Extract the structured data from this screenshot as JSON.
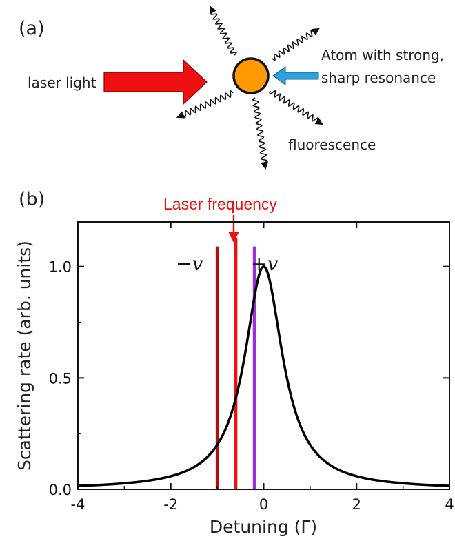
{
  "panel_a": {
    "label": "(a)",
    "laser_label": "laser light",
    "atom_label_line1": "Atom with strong,",
    "atom_label_line2": "sharp resonance",
    "fluorescence_label": "fluorescence",
    "colors": {
      "laser_arrow": "#ee1111",
      "atom_fill": "#ff9a00",
      "small_arrow": "#2aa0dd"
    }
  },
  "panel_b": {
    "label": "(b)",
    "laser_frequency_label": "Laser frequency",
    "minus_v_label": "−v",
    "plus_v_label": "+v"
  },
  "chart_data": {
    "type": "line",
    "xlabel": "Detuning (Γ)",
    "ylabel": "Scattering rate (arb. units)",
    "xlim": [
      -4,
      4
    ],
    "ylim": [
      0,
      1.2
    ],
    "xticks": [
      -4,
      -2,
      0,
      2,
      4
    ],
    "xtick_labels": [
      "-4",
      "-2",
      "0",
      "2",
      "4"
    ],
    "yticks": [
      0,
      0.5,
      1.0
    ],
    "ytick_labels": [
      "0.0",
      "0.5",
      "1.0"
    ],
    "curve": {
      "type": "lorentzian",
      "center": 0,
      "fwhm": 1,
      "peak": 1.0,
      "color": "#000000"
    },
    "vertical_lines": [
      {
        "x": -1.0,
        "top": 1.09,
        "color": "#b01010",
        "label": "−v"
      },
      {
        "x": -0.6,
        "top": 1.13,
        "color": "#ee1111",
        "label": "Laser frequency"
      },
      {
        "x": -0.2,
        "top": 1.09,
        "color": "#9a2ee0",
        "label": "+v"
      }
    ]
  }
}
